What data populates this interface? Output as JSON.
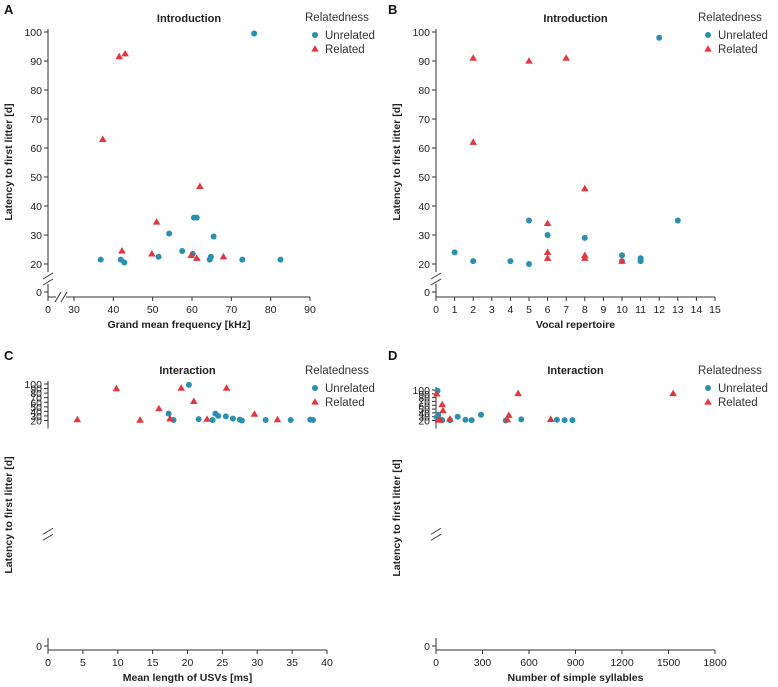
{
  "colors": {
    "unrelated": "#2a8fb0",
    "related": "#e0383e",
    "axis": "#333333"
  },
  "legend": {
    "title": "Relatedness",
    "unrelated": "Unrelated",
    "related": "Related"
  },
  "chart_data": [
    {
      "type": "scatter",
      "panel": "A",
      "title": "Introduction",
      "xlabel": "Grand mean frequency [kHz]",
      "ylabel": "Latency to first litter [d]",
      "xlim": [
        0,
        90
      ],
      "xticks": [
        0,
        30,
        40,
        50,
        60,
        70,
        80,
        90
      ],
      "xbreak": [
        0,
        30
      ],
      "ylim": [
        0,
        100
      ],
      "yticks": [
        0,
        20,
        30,
        40,
        50,
        60,
        70,
        80,
        90,
        100
      ],
      "ybreak": [
        0,
        20
      ],
      "legend_position": "top-right",
      "series": [
        {
          "name": "Unrelated",
          "marker": "circle",
          "points": [
            [
              36.8,
              21.5
            ],
            [
              41.9,
              21.5
            ],
            [
              42.8,
              20.5
            ],
            [
              51.5,
              22.5
            ],
            [
              54.2,
              30.5
            ],
            [
              57.5,
              24.5
            ],
            [
              60.2,
              23.5
            ],
            [
              60.5,
              36
            ],
            [
              61.2,
              36
            ],
            [
              64.5,
              21.5
            ],
            [
              64.8,
              22.5
            ],
            [
              65.5,
              29.5
            ],
            [
              72.8,
              21.5
            ],
            [
              75.8,
              99.5
            ],
            [
              82.5,
              21.5
            ]
          ]
        },
        {
          "name": "Related",
          "marker": "triangle",
          "points": [
            [
              37.3,
              63
            ],
            [
              41.5,
              91.5
            ],
            [
              42.2,
              24.5
            ],
            [
              43,
              92.5
            ],
            [
              49.8,
              23.5
            ],
            [
              51,
              34.5
            ],
            [
              59.8,
              23
            ],
            [
              61.2,
              22
            ],
            [
              62,
              46.8
            ],
            [
              68,
              22.5
            ]
          ]
        }
      ]
    },
    {
      "type": "scatter",
      "panel": "B",
      "title": "Introduction",
      "xlabel": "Vocal repertoire",
      "ylabel": "Latency to first litter [d]",
      "xlim": [
        0,
        15
      ],
      "xticks": [
        0,
        1,
        2,
        3,
        4,
        5,
        6,
        7,
        8,
        9,
        10,
        11,
        12,
        13,
        14,
        15
      ],
      "ylim": [
        0,
        100
      ],
      "yticks": [
        0,
        20,
        30,
        40,
        50,
        60,
        70,
        80,
        90,
        100
      ],
      "ybreak": [
        0,
        20
      ],
      "legend_position": "top-right",
      "series": [
        {
          "name": "Unrelated",
          "marker": "circle",
          "points": [
            [
              1,
              24
            ],
            [
              2,
              21
            ],
            [
              4,
              21
            ],
            [
              5,
              35
            ],
            [
              5,
              20
            ],
            [
              6,
              30
            ],
            [
              8,
              29
            ],
            [
              10,
              23
            ],
            [
              10,
              21
            ],
            [
              11,
              22
            ],
            [
              11,
              21
            ],
            [
              12,
              98
            ],
            [
              13,
              35
            ]
          ]
        },
        {
          "name": "Related",
          "marker": "triangle",
          "points": [
            [
              2,
              91
            ],
            [
              2,
              62
            ],
            [
              5,
              90
            ],
            [
              6,
              34
            ],
            [
              6,
              24
            ],
            [
              6,
              22
            ],
            [
              7,
              91
            ],
            [
              8,
              46
            ],
            [
              8,
              23
            ],
            [
              8,
              22
            ],
            [
              10,
              21
            ]
          ]
        }
      ]
    },
    {
      "type": "scatter",
      "panel": "C",
      "title": "Interaction",
      "xlabel": "Mean length of USVs [ms]",
      "ylabel": "Latency to first litter [d]",
      "xlim": [
        0,
        40
      ],
      "xticks": [
        0,
        5,
        10,
        15,
        20,
        25,
        30,
        35,
        40
      ],
      "ylim": [
        0,
        100
      ],
      "yticks": [
        0,
        20,
        30,
        40,
        50,
        60,
        70,
        80,
        90,
        100
      ],
      "ybreak": [
        0,
        20
      ],
      "legend_position": "top-right",
      "series": [
        {
          "name": "Unrelated",
          "marker": "circle",
          "points": [
            [
              17.3,
              35
            ],
            [
              18,
              21
            ],
            [
              20.2,
              98
            ],
            [
              21.6,
              23
            ],
            [
              23.6,
              21
            ],
            [
              24,
              35
            ],
            [
              24.4,
              30
            ],
            [
              25.5,
              29
            ],
            [
              26.5,
              24
            ],
            [
              27.5,
              22
            ],
            [
              27.8,
              20
            ],
            [
              31.2,
              21
            ],
            [
              34.8,
              21
            ],
            [
              37.6,
              22
            ],
            [
              38,
              21
            ]
          ]
        },
        {
          "name": "Related",
          "marker": "triangle",
          "points": [
            [
              4.2,
              22
            ],
            [
              9.8,
              90
            ],
            [
              13.2,
              21
            ],
            [
              15.9,
              46
            ],
            [
              17.5,
              24
            ],
            [
              19.1,
              91
            ],
            [
              20.9,
              62
            ],
            [
              22.8,
              23
            ],
            [
              25.6,
              91
            ],
            [
              29.6,
              34
            ],
            [
              32.9,
              22
            ]
          ]
        }
      ]
    },
    {
      "type": "scatter",
      "panel": "D",
      "title": "Interaction",
      "xlabel": "Number of simple syllables",
      "ylabel": "Latency to first litter [d]",
      "xlim": [
        0,
        1800
      ],
      "xticks": [
        0,
        300,
        600,
        900,
        1200,
        1500,
        1800
      ],
      "ylim": [
        0,
        100
      ],
      "yticks": [
        0,
        20,
        30,
        40,
        50,
        60,
        70,
        80,
        90,
        100
      ],
      "ybreak": [
        0,
        20
      ],
      "legend_position": "top-right",
      "series": [
        {
          "name": "Unrelated",
          "marker": "circle",
          "points": [
            [
              10,
              98
            ],
            [
              15,
              35
            ],
            [
              5,
              29
            ],
            [
              20,
              24
            ],
            [
              30,
              22
            ],
            [
              40,
              21
            ],
            [
              90,
              21
            ],
            [
              140,
              30
            ],
            [
              190,
              22
            ],
            [
              230,
              21
            ],
            [
              290,
              35
            ],
            [
              450,
              20
            ],
            [
              550,
              23
            ],
            [
              780,
              22
            ],
            [
              830,
              21
            ],
            [
              880,
              21
            ]
          ]
        },
        {
          "name": "Related",
          "marker": "triangle",
          "points": [
            [
              5,
              90
            ],
            [
              15,
              22
            ],
            [
              25,
              21
            ],
            [
              40,
              62
            ],
            [
              45,
              46
            ],
            [
              90,
              24
            ],
            [
              470,
              34
            ],
            [
              460,
              22
            ],
            [
              530,
              91
            ],
            [
              740,
              23
            ],
            [
              1530,
              91
            ]
          ]
        }
      ]
    }
  ]
}
